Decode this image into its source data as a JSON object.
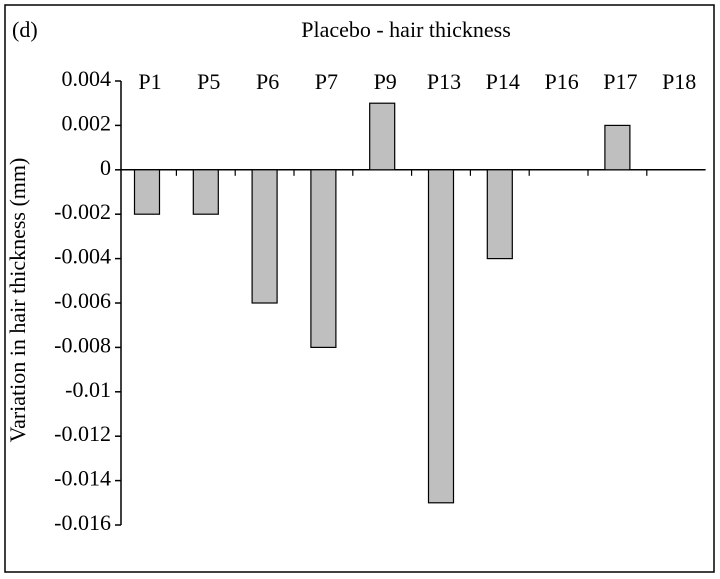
{
  "chart_data": {
    "type": "bar",
    "panel_label": "(d)",
    "title": "Placebo - hair thickness",
    "y_label": "Variation in hair thickness (mm)",
    "categories": [
      "P1",
      "P5",
      "P6",
      "P7",
      "P9",
      "P13",
      "P14",
      "P16",
      "P17",
      "P18"
    ],
    "values": [
      -0.002,
      -0.002,
      -0.006,
      -0.008,
      0.003,
      -0.015,
      -0.004,
      0,
      0.002,
      0
    ],
    "color": "#bfbfbf",
    "ylim": [
      -0.016,
      0.004
    ],
    "yticks": [
      0.004,
      0.002,
      0,
      -0.002,
      -0.004,
      -0.006,
      -0.008,
      -0.01,
      -0.012,
      -0.014,
      -0.016
    ],
    "grid": false
  }
}
